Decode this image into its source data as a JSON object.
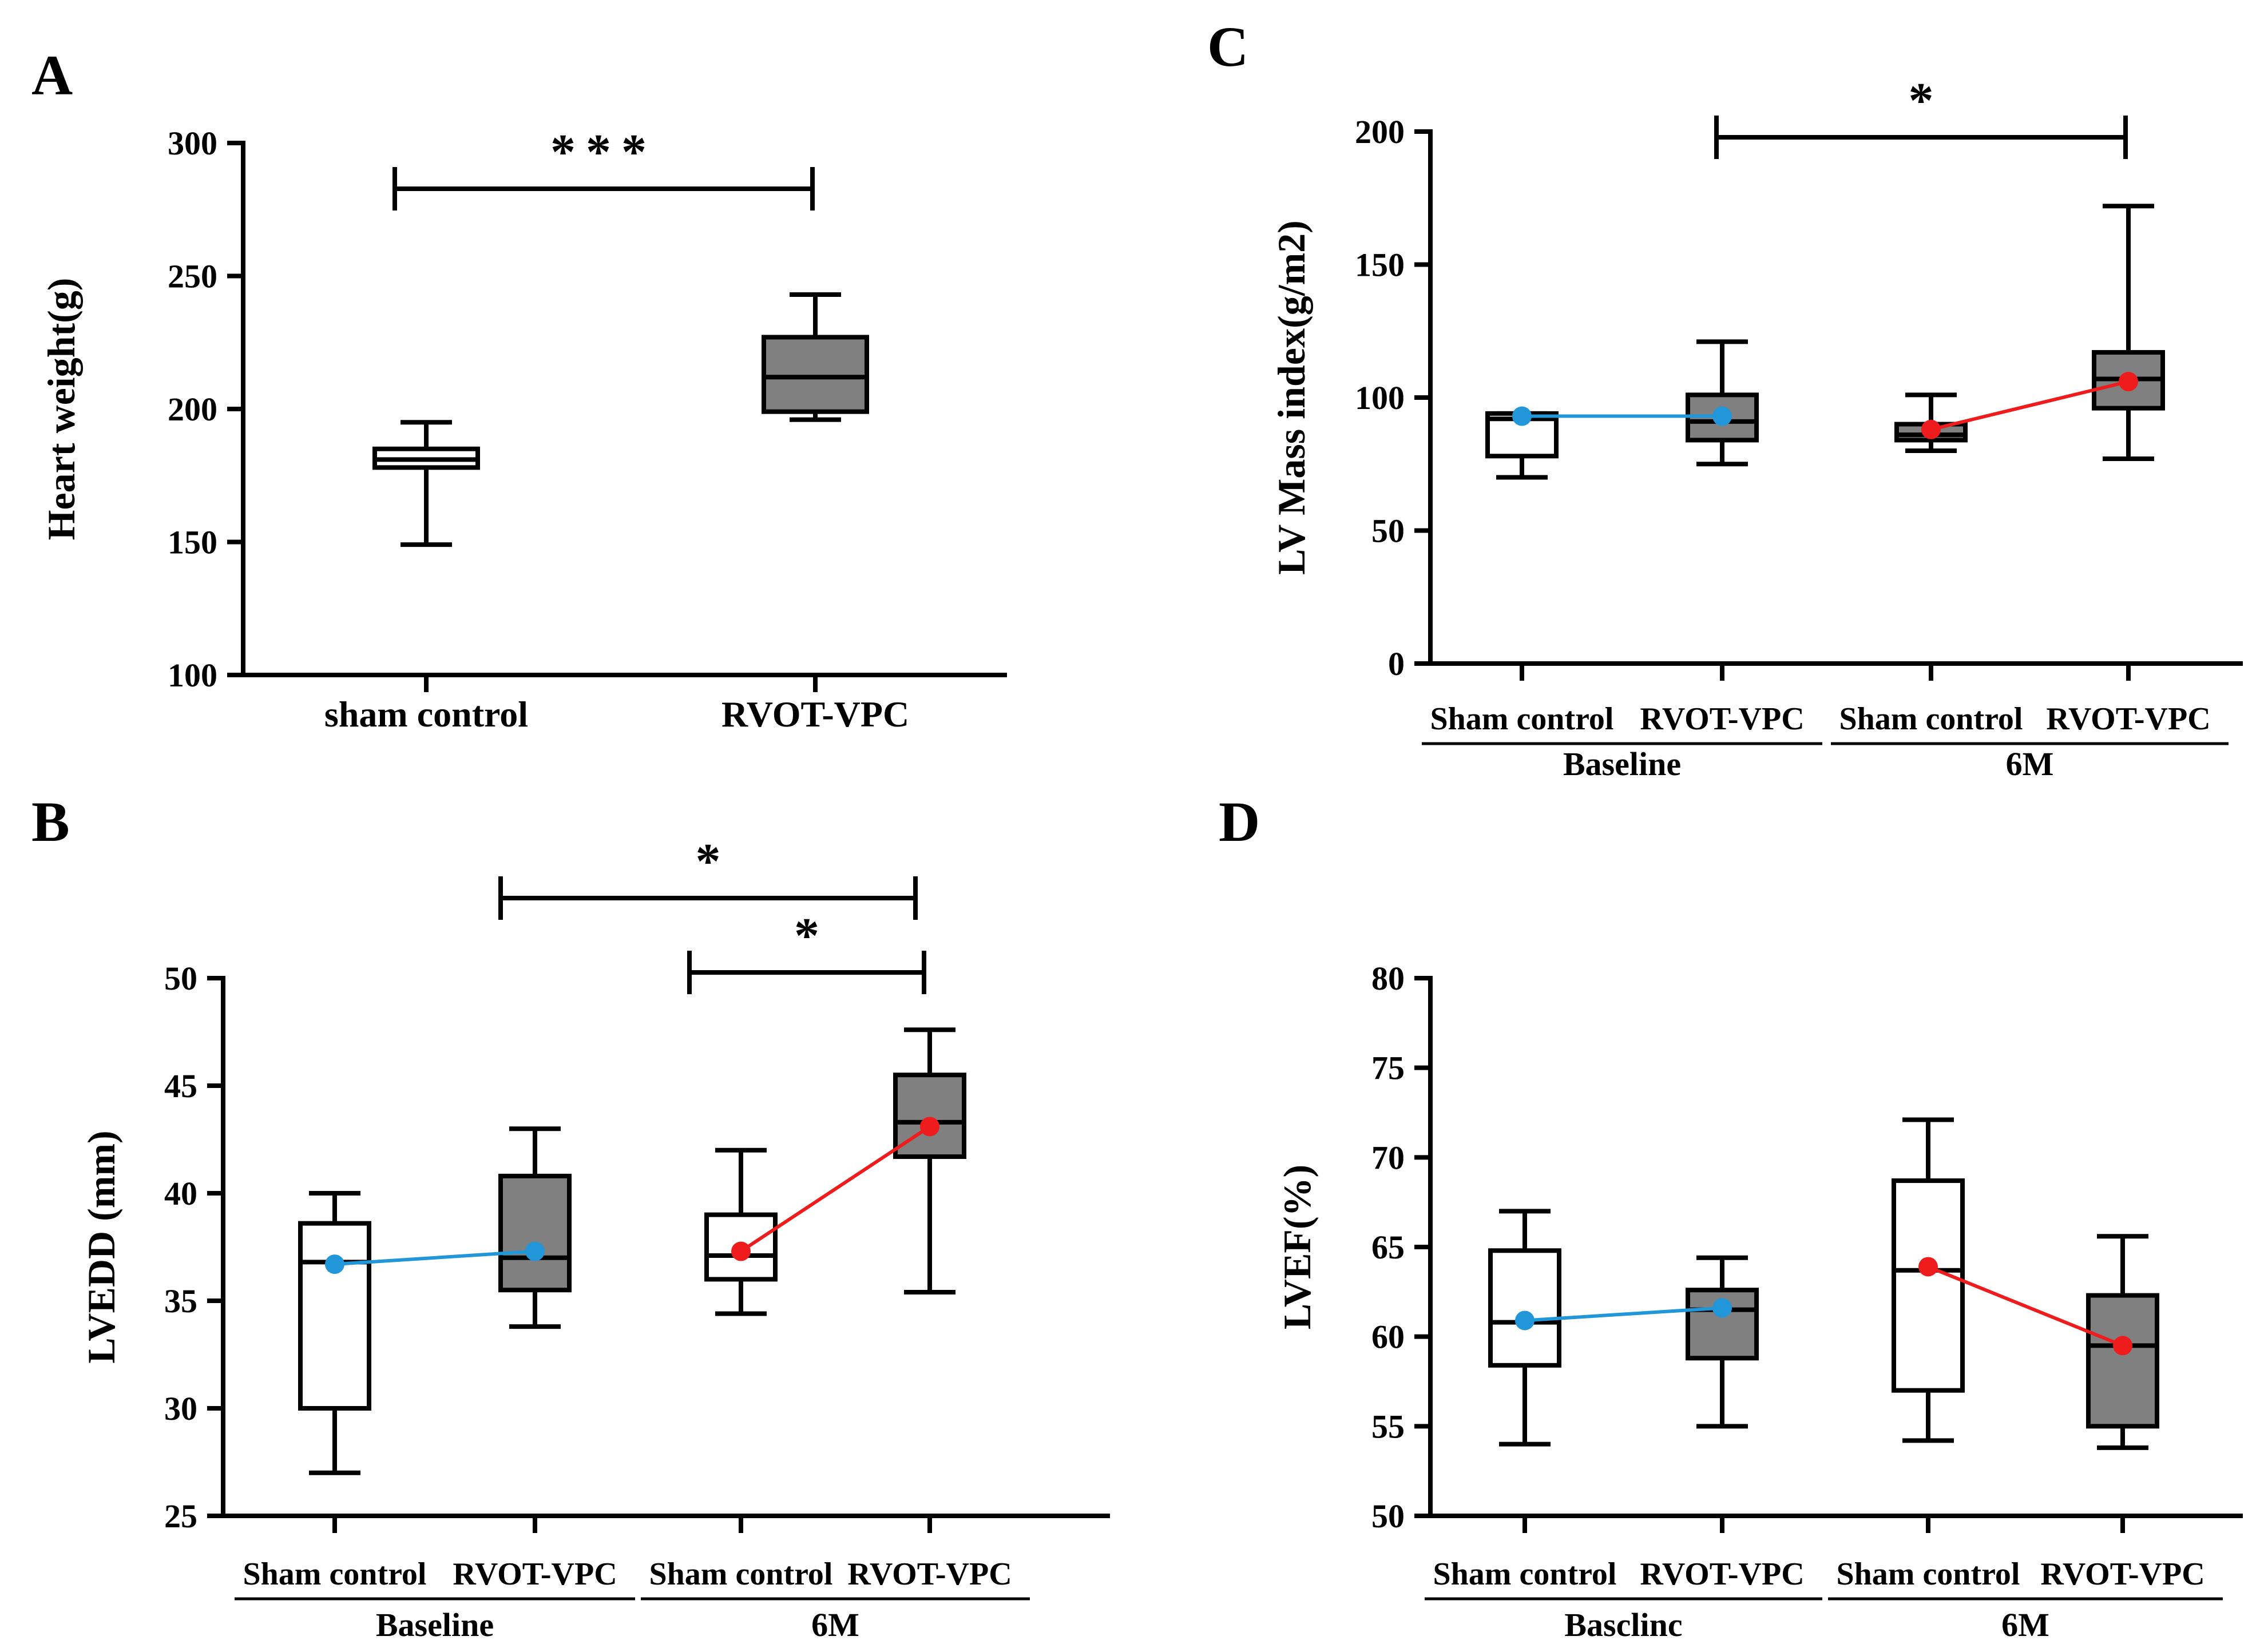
{
  "chart_data": [
    {
      "panel": "A",
      "type": "box",
      "ylabel": "Heart weight(g)",
      "ylim": [
        100,
        300
      ],
      "yticks": [
        100,
        150,
        200,
        250,
        300
      ],
      "categories": [
        "sham control",
        "RVOT-VPC"
      ],
      "boxes": [
        {
          "group": "sham control",
          "min": 149,
          "q1": 178,
          "median": 181,
          "q3": 185,
          "max": 195,
          "fill": "#ffffff"
        },
        {
          "group": "RVOT-VPC",
          "min": 196,
          "q1": 199,
          "median": 212,
          "q3": 227,
          "max": 243,
          "fill": "#808080"
        }
      ],
      "significance": [
        {
          "from": 0,
          "to": 1,
          "label": "***"
        }
      ]
    },
    {
      "panel": "B",
      "type": "box",
      "ylabel": "LVEDD (mm)",
      "ylim": [
        25,
        50
      ],
      "yticks": [
        25,
        30,
        35,
        40,
        45,
        50
      ],
      "categories": [
        "Sham control",
        "RVOT-VPC",
        "Sham control",
        "RVOT-VPC"
      ],
      "groups": [
        "Baseline",
        "6M"
      ],
      "boxes": [
        {
          "min": 27,
          "q1": 30,
          "median": 36.8,
          "q3": 38.6,
          "max": 40,
          "fill": "#ffffff"
        },
        {
          "min": 33.8,
          "q1": 35.5,
          "median": 37,
          "q3": 40.8,
          "max": 43,
          "fill": "#808080"
        },
        {
          "min": 34.4,
          "q1": 36,
          "median": 37.1,
          "q3": 39,
          "max": 42,
          "fill": "#ffffff"
        },
        {
          "min": 35.4,
          "q1": 41.7,
          "median": 43.3,
          "q3": 45.5,
          "max": 47.6,
          "fill": "#808080"
        }
      ],
      "means": [
        36.7,
        37.3,
        37.3,
        43.1
      ],
      "significance": [
        {
          "from": 1,
          "to": 3,
          "label": "*"
        },
        {
          "from": 2,
          "to": 3,
          "label": "*"
        }
      ]
    },
    {
      "panel": "C",
      "type": "box",
      "ylabel": "LV Mass index(g/m2)",
      "ylim": [
        0,
        200
      ],
      "yticks": [
        0,
        50,
        100,
        150,
        200
      ],
      "categories": [
        "Sham control",
        "RVOT-VPC",
        "Sham control",
        "RVOT-VPC"
      ],
      "groups": [
        "Baseline",
        "6M"
      ],
      "boxes": [
        {
          "min": 70,
          "q1": 78,
          "median": 92,
          "q3": 94,
          "max": 94,
          "fill": "#ffffff"
        },
        {
          "min": 75,
          "q1": 84,
          "median": 91,
          "q3": 101,
          "max": 121,
          "fill": "#808080"
        },
        {
          "min": 80,
          "q1": 84,
          "median": 86,
          "q3": 90,
          "max": 101,
          "fill": "#808080"
        },
        {
          "min": 77,
          "q1": 96,
          "median": 107,
          "q3": 117,
          "max": 172,
          "fill": "#808080"
        }
      ],
      "means": [
        93,
        93,
        88,
        106
      ],
      "significance": [
        {
          "from": 1,
          "to": 3,
          "label": "*"
        }
      ]
    },
    {
      "panel": "D",
      "type": "box",
      "ylabel": "LVEF(%)",
      "ylim": [
        50,
        80
      ],
      "yticks": [
        50,
        55,
        60,
        65,
        70,
        75,
        80
      ],
      "categories": [
        "Sham control",
        "RVOT-VPC",
        "Sham control",
        "RVOT-VPC"
      ],
      "groups": [
        "Basclinc",
        "6M"
      ],
      "boxes": [
        {
          "min": 54,
          "q1": 58.4,
          "median": 60.8,
          "q3": 64.8,
          "max": 67,
          "fill": "#ffffff"
        },
        {
          "min": 55,
          "q1": 58.8,
          "median": 61.5,
          "q3": 62.6,
          "max": 64.4,
          "fill": "#808080"
        },
        {
          "min": 54.2,
          "q1": 57,
          "median": 63.7,
          "q3": 68.7,
          "max": 72.1,
          "fill": "#ffffff"
        },
        {
          "min": 53.8,
          "q1": 55,
          "median": 59.5,
          "q3": 62.3,
          "max": 65.6,
          "fill": "#808080"
        }
      ],
      "means": [
        60.9,
        61.6,
        63.9,
        59.5
      ],
      "significance": []
    }
  ],
  "colors": {
    "baseline_mean": "#2196d9",
    "followup_mean": "#ee1c1c",
    "box_fill": "#808080"
  }
}
